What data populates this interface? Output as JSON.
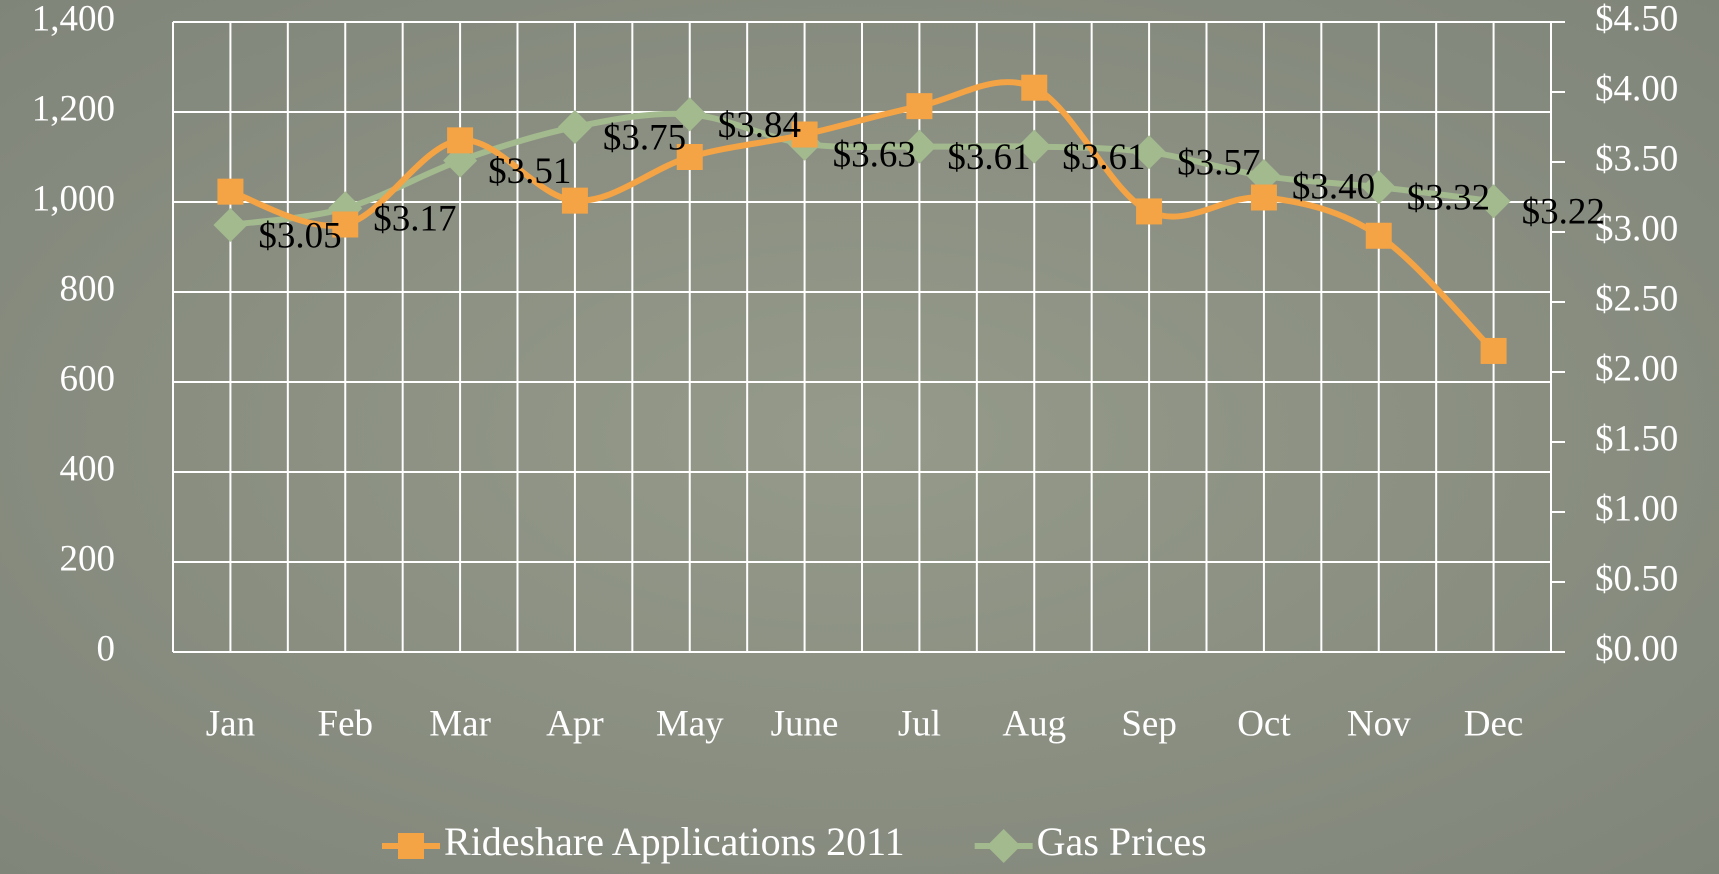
{
  "chart_data": {
    "type": "line",
    "categories": [
      "Jan",
      "Feb",
      "Mar",
      "Apr",
      "May",
      "June",
      "Jul",
      "Aug",
      "Sep",
      "Oct",
      "Nov",
      "Dec"
    ],
    "series": [
      {
        "name": "Rideshare Applications 2011",
        "color": "#f4a345",
        "marker": "square",
        "values": [
          1023,
          950,
          1137,
          1003,
          1100,
          1150,
          1213,
          1254,
          979,
          1010,
          925,
          669
        ]
      },
      {
        "name": "Gas Prices",
        "color": "#a3b98e",
        "marker": "diamond",
        "axis": "y2",
        "values": [
          3.05,
          3.17,
          3.51,
          3.75,
          3.84,
          3.63,
          3.61,
          3.61,
          3.57,
          3.4,
          3.32,
          3.22
        ],
        "value_labels": [
          "$3.05",
          "$3.17",
          "$3.51",
          "$3.75",
          "$3.84",
          "$3.63",
          "$3.61",
          "$3.61",
          "$3.57",
          "$3.40",
          "$3.32",
          "$3.22"
        ]
      }
    ],
    "ylim": [
      0,
      1400
    ],
    "yticks": [
      0,
      200,
      400,
      600,
      800,
      {
        "value": 1000,
        "label": "1,000"
      },
      {
        "value": 1200,
        "label": "1,200"
      },
      {
        "value": 1400,
        "label": "1,400"
      }
    ],
    "y2lim": [
      0,
      4.5
    ],
    "y2ticks": [
      {
        "value": 0,
        "label": "$0.00"
      },
      {
        "value": 0.5,
        "label": "$0.50"
      },
      {
        "value": 1,
        "label": "$1.00"
      },
      {
        "value": 1.5,
        "label": "$1.50"
      },
      {
        "value": 2,
        "label": "$2.00"
      },
      {
        "value": 2.5,
        "label": "$2.50"
      },
      {
        "value": 3,
        "label": "$3.00"
      },
      {
        "value": 3.5,
        "label": "$3.50"
      },
      {
        "value": 4,
        "label": "$4.00"
      },
      {
        "value": 4.5,
        "label": "$4.50"
      }
    ],
    "grid": true,
    "legend": "bottom"
  }
}
